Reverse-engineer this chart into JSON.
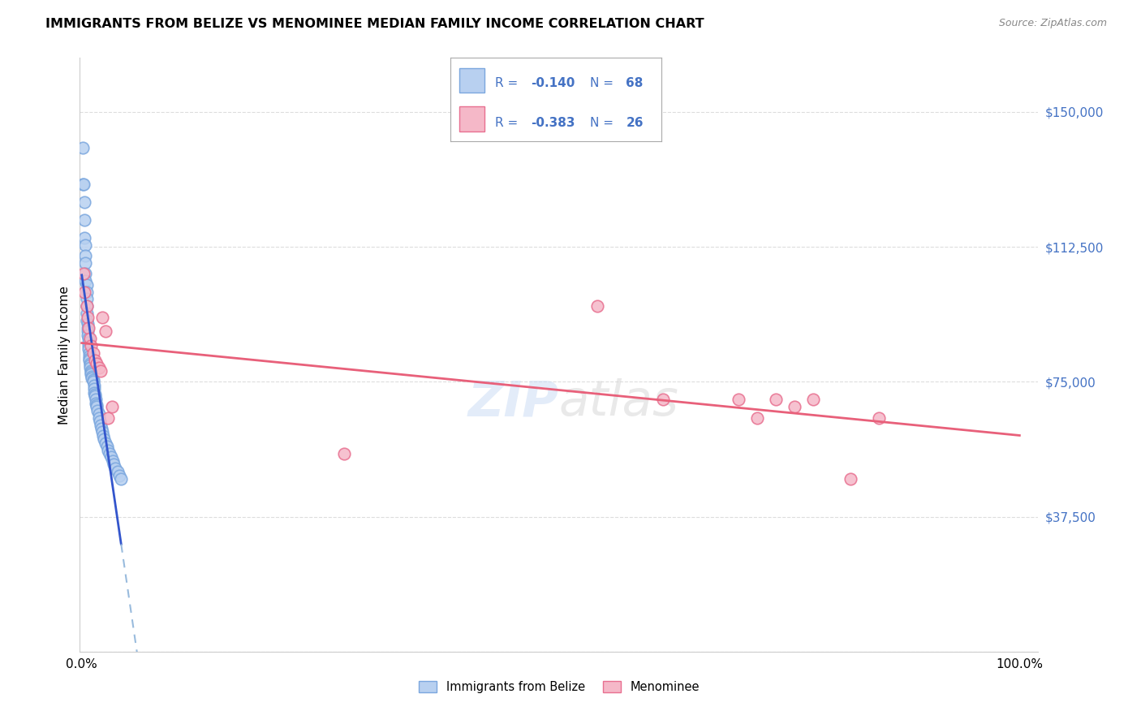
{
  "title": "IMMIGRANTS FROM BELIZE VS MENOMINEE MEDIAN FAMILY INCOME CORRELATION CHART",
  "source": "Source: ZipAtlas.com",
  "ylabel": "Median Family Income",
  "yticks": [
    0,
    37500,
    75000,
    112500,
    150000
  ],
  "ytick_labels": [
    "",
    "$37,500",
    "$75,000",
    "$112,500",
    "$150,000"
  ],
  "ylim": [
    0,
    165000
  ],
  "xlim": [
    -0.002,
    1.02
  ],
  "belize_color": "#b8d0f0",
  "belize_edge_color": "#7ba7de",
  "menominee_color": "#f5b8c8",
  "menominee_edge_color": "#e87090",
  "belize_line_color": "#3355cc",
  "menominee_line_color": "#e8607a",
  "belize_dashed_color": "#99bbdd",
  "background_color": "#ffffff",
  "grid_color": "#dddddd",
  "legend_text_color": "#4472c4",
  "watermark": "ZIPatlas",
  "belize_x": [
    0.001,
    0.001,
    0.002,
    0.003,
    0.003,
    0.003,
    0.004,
    0.004,
    0.004,
    0.004,
    0.004,
    0.005,
    0.005,
    0.005,
    0.005,
    0.005,
    0.005,
    0.006,
    0.006,
    0.006,
    0.006,
    0.007,
    0.007,
    0.007,
    0.007,
    0.008,
    0.008,
    0.008,
    0.008,
    0.009,
    0.009,
    0.009,
    0.01,
    0.01,
    0.01,
    0.011,
    0.011,
    0.012,
    0.012,
    0.013,
    0.013,
    0.013,
    0.014,
    0.014,
    0.015,
    0.015,
    0.016,
    0.016,
    0.017,
    0.018,
    0.018,
    0.019,
    0.02,
    0.021,
    0.022,
    0.023,
    0.024,
    0.025,
    0.027,
    0.028,
    0.03,
    0.031,
    0.033,
    0.034,
    0.036,
    0.038,
    0.04,
    0.042
  ],
  "belize_y": [
    140000,
    130000,
    130000,
    125000,
    120000,
    115000,
    113000,
    110000,
    108000,
    105000,
    103000,
    102000,
    100000,
    98000,
    96000,
    94000,
    92000,
    91000,
    90000,
    89000,
    88000,
    87000,
    86000,
    85000,
    84000,
    83000,
    82000,
    81500,
    81000,
    80000,
    79500,
    79000,
    78000,
    77500,
    77000,
    76500,
    76000,
    75500,
    75000,
    74000,
    73000,
    72000,
    71500,
    71000,
    70000,
    69000,
    68500,
    68000,
    67000,
    66000,
    65000,
    64000,
    63000,
    62000,
    61000,
    60000,
    59000,
    58000,
    57000,
    56000,
    55000,
    54000,
    53000,
    52000,
    51000,
    50000,
    49000,
    48000
  ],
  "menominee_x": [
    0.002,
    0.003,
    0.005,
    0.006,
    0.007,
    0.009,
    0.01,
    0.012,
    0.014,
    0.016,
    0.018,
    0.02,
    0.022,
    0.025,
    0.028,
    0.032,
    0.28,
    0.55,
    0.62,
    0.7,
    0.72,
    0.74,
    0.76,
    0.78,
    0.82,
    0.85
  ],
  "menominee_y": [
    105000,
    100000,
    96000,
    93000,
    90000,
    87000,
    85000,
    83000,
    81000,
    80000,
    79000,
    78000,
    93000,
    89000,
    65000,
    68000,
    55000,
    96000,
    70000,
    70000,
    65000,
    70000,
    68000,
    70000,
    48000,
    65000
  ]
}
